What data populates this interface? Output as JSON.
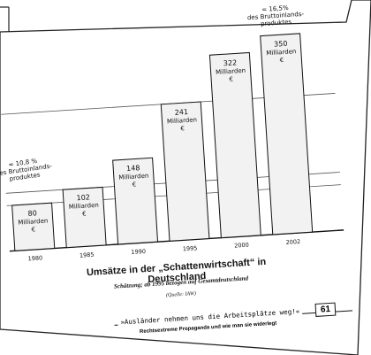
{
  "chart_data": {
    "type": "bar",
    "title": "Umsätze in der „Schattenwirtschaft“ in Deutschland",
    "subtitle": "Schätzung; ab 1995 bezogen auf Gesamtdeutschland",
    "source": "(Quelle: IAW)",
    "categories": [
      "1980",
      "1985",
      "1990",
      "1995",
      "2000",
      "2002"
    ],
    "values": [
      80,
      102,
      148,
      241,
      322,
      350
    ],
    "unit_label": [
      "Milliarden",
      "€"
    ],
    "annotations": [
      {
        "text": [
          "= 10,8 %",
          "des Bruttoinlands-",
          "produktes"
        ],
        "for": "1980"
      },
      {
        "text": [
          "= 16,5%",
          "des Bruttoinlands-",
          "produktes"
        ],
        "for": "2002"
      }
    ],
    "ylim": [
      0,
      380
    ],
    "grid": true
  },
  "footer": {
    "quote": "»Ausländer nehmen uns die Arbeitsplätze weg!«",
    "book_title": "Rechtsextreme Propaganda und wie man sie widerlegt",
    "page_number": "61"
  },
  "colors": {
    "ink": "#111111",
    "bar_fill": "#f2f2f2",
    "grid": "#555555",
    "paper": "#ffffff"
  }
}
